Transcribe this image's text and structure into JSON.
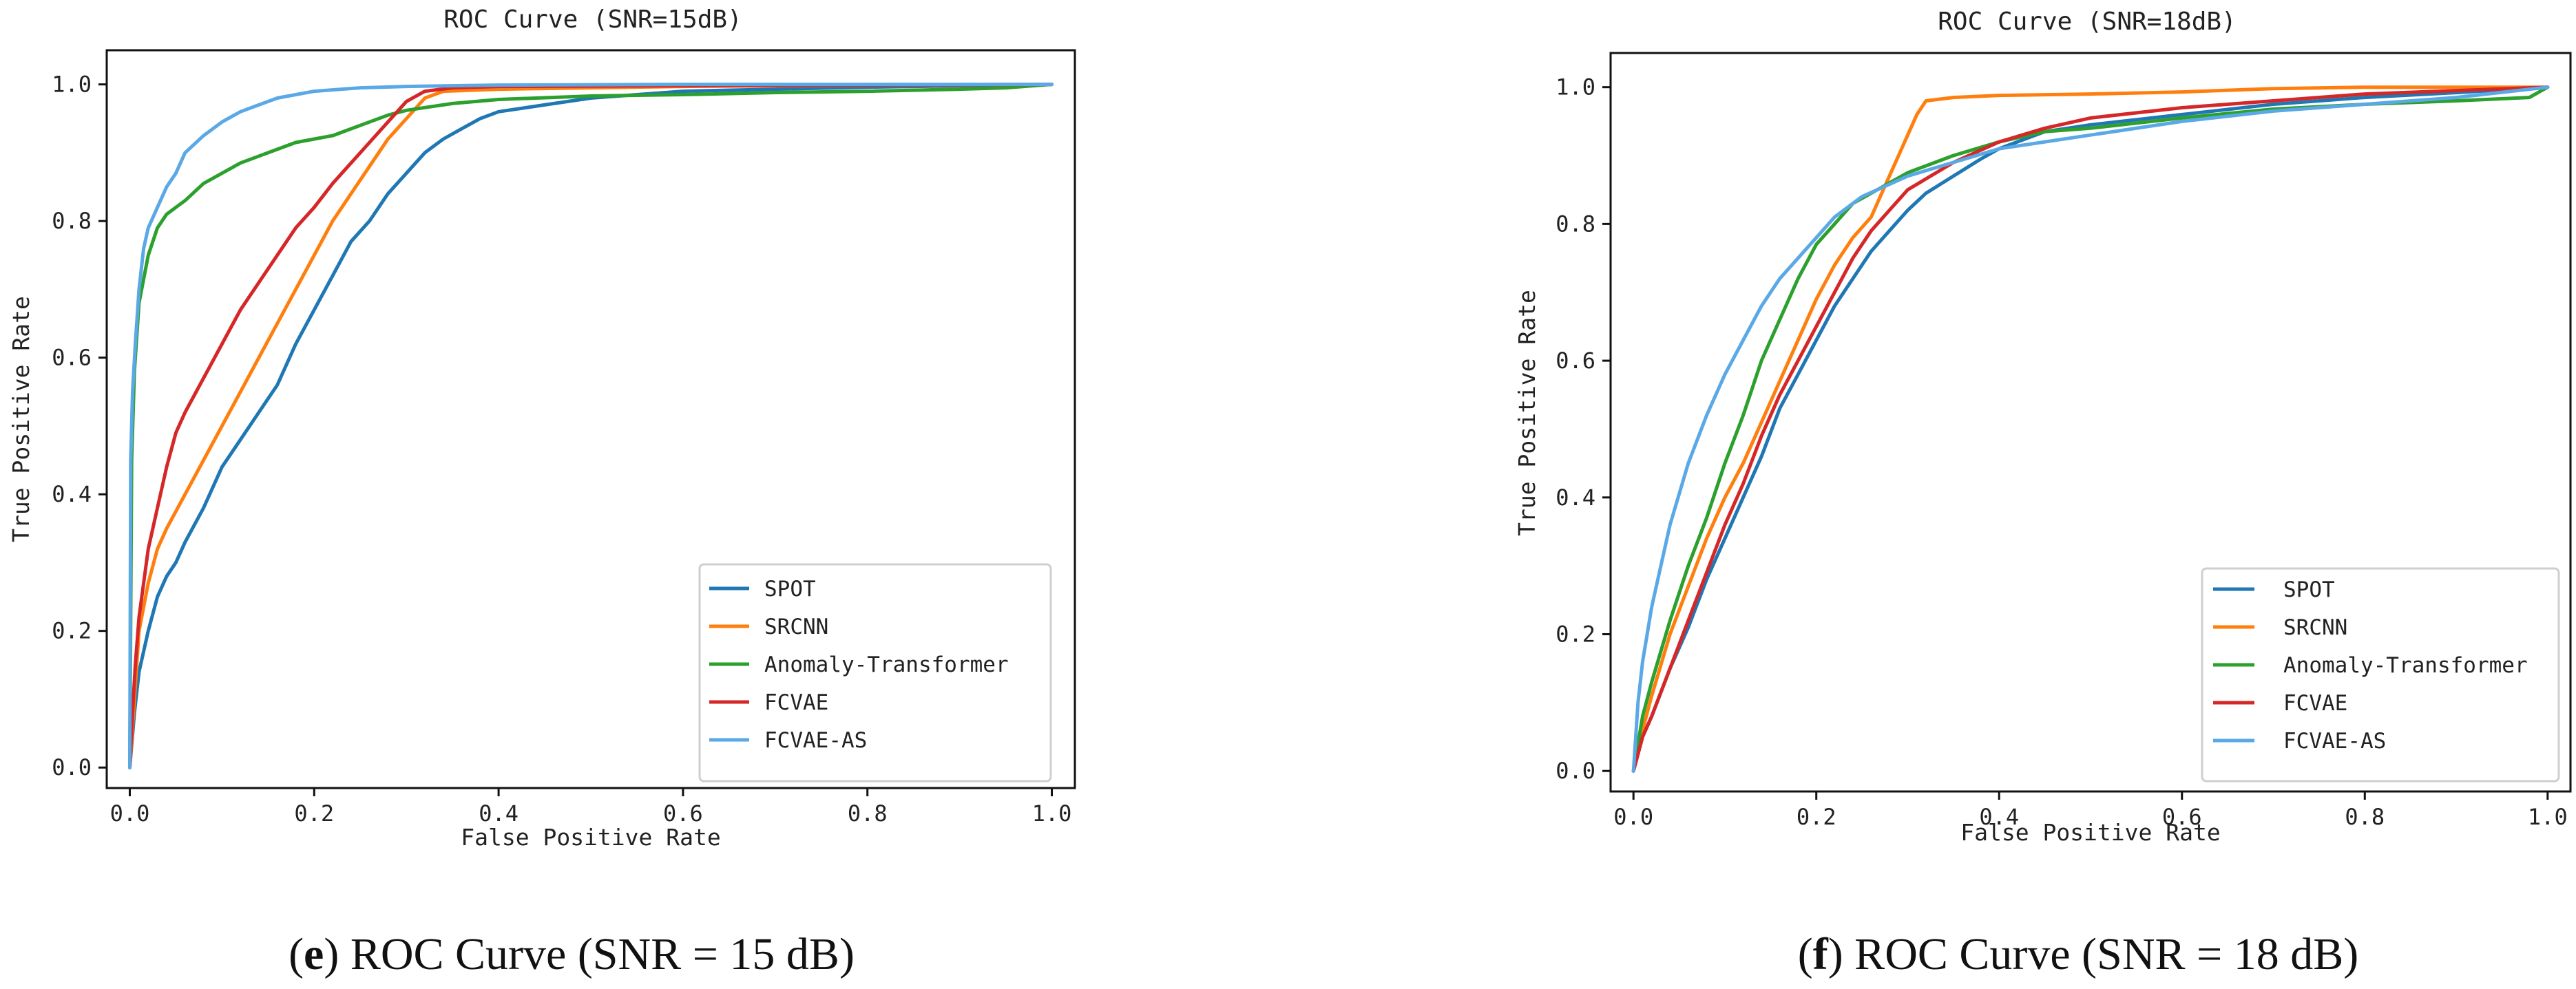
{
  "chart_data": [
    {
      "type": "line",
      "title": "ROC Curve (SNR=15dB)",
      "xlabel": "False Positive Rate",
      "ylabel": "True Positive Rate",
      "xlim": [
        -0.025,
        1.025
      ],
      "ylim": [
        -0.03,
        1.05
      ],
      "xticks": [
        0.0,
        0.2,
        0.4,
        0.6,
        0.8,
        1.0
      ],
      "xtick_labels": [
        "0.0",
        "0.2",
        "0.4",
        "0.6",
        "0.8",
        "1.0"
      ],
      "yticks": [
        0.0,
        0.2,
        0.4,
        0.6,
        0.8,
        1.0
      ],
      "ytick_labels": [
        "0.0",
        "0.2",
        "0.4",
        "0.6",
        "0.8",
        "1.0"
      ],
      "grid": false,
      "legend_position": "lower-right",
      "caption_letter": "e",
      "caption_text": "ROC Curve (SNR = 15 dB)",
      "series": [
        {
          "name": "SPOT",
          "color": "#1f77b4",
          "x": [
            0.0,
            0.005,
            0.01,
            0.02,
            0.03,
            0.04,
            0.05,
            0.06,
            0.08,
            0.1,
            0.12,
            0.14,
            0.16,
            0.18,
            0.2,
            0.22,
            0.24,
            0.26,
            0.28,
            0.3,
            0.32,
            0.34,
            0.36,
            0.38,
            0.4,
            0.45,
            0.5,
            0.55,
            0.6,
            0.7,
            0.8,
            0.9,
            1.0
          ],
          "y": [
            0.0,
            0.08,
            0.14,
            0.2,
            0.25,
            0.28,
            0.3,
            0.33,
            0.38,
            0.44,
            0.48,
            0.52,
            0.56,
            0.62,
            0.67,
            0.72,
            0.77,
            0.8,
            0.84,
            0.87,
            0.9,
            0.92,
            0.935,
            0.95,
            0.96,
            0.97,
            0.98,
            0.985,
            0.99,
            0.993,
            0.996,
            0.998,
            1.0
          ]
        },
        {
          "name": "SRCNN",
          "color": "#ff7f0e",
          "x": [
            0.0,
            0.005,
            0.01,
            0.02,
            0.03,
            0.04,
            0.06,
            0.08,
            0.1,
            0.12,
            0.14,
            0.16,
            0.18,
            0.2,
            0.22,
            0.24,
            0.26,
            0.28,
            0.3,
            0.32,
            0.34,
            0.4,
            0.5,
            0.6,
            0.8,
            1.0
          ],
          "y": [
            0.0,
            0.1,
            0.2,
            0.27,
            0.32,
            0.35,
            0.4,
            0.45,
            0.5,
            0.55,
            0.6,
            0.65,
            0.7,
            0.75,
            0.8,
            0.84,
            0.88,
            0.92,
            0.95,
            0.98,
            0.99,
            0.993,
            0.995,
            0.997,
            0.999,
            1.0
          ]
        },
        {
          "name": "Anomaly-Transformer",
          "color": "#2ca02c",
          "x": [
            0.0,
            0.002,
            0.005,
            0.01,
            0.02,
            0.03,
            0.04,
            0.05,
            0.06,
            0.08,
            0.1,
            0.12,
            0.15,
            0.18,
            0.2,
            0.22,
            0.25,
            0.28,
            0.3,
            0.35,
            0.4,
            0.5,
            0.6,
            0.7,
            0.8,
            0.9,
            0.95,
            1.0
          ],
          "y": [
            0.0,
            0.45,
            0.58,
            0.68,
            0.75,
            0.79,
            0.81,
            0.82,
            0.83,
            0.855,
            0.87,
            0.885,
            0.9,
            0.915,
            0.92,
            0.925,
            0.94,
            0.955,
            0.962,
            0.972,
            0.978,
            0.983,
            0.985,
            0.988,
            0.99,
            0.993,
            0.995,
            1.0
          ]
        },
        {
          "name": "FCVAE",
          "color": "#d62728",
          "x": [
            0.0,
            0.003,
            0.006,
            0.01,
            0.015,
            0.02,
            0.03,
            0.04,
            0.05,
            0.06,
            0.08,
            0.1,
            0.12,
            0.14,
            0.16,
            0.18,
            0.2,
            0.22,
            0.24,
            0.26,
            0.28,
            0.3,
            0.32,
            0.35,
            0.4,
            0.6,
            0.8,
            1.0
          ],
          "y": [
            0.0,
            0.08,
            0.15,
            0.22,
            0.27,
            0.32,
            0.38,
            0.44,
            0.49,
            0.52,
            0.57,
            0.62,
            0.67,
            0.71,
            0.75,
            0.79,
            0.82,
            0.855,
            0.885,
            0.915,
            0.945,
            0.975,
            0.99,
            0.995,
            0.997,
            0.998,
            0.999,
            1.0
          ]
        },
        {
          "name": "FCVAE-AS",
          "color": "#5aa9e6",
          "x": [
            0.0,
            0.001,
            0.003,
            0.006,
            0.01,
            0.015,
            0.02,
            0.03,
            0.04,
            0.05,
            0.06,
            0.08,
            0.1,
            0.12,
            0.14,
            0.16,
            0.18,
            0.2,
            0.25,
            0.3,
            0.4,
            0.6,
            0.8,
            1.0
          ],
          "y": [
            0.0,
            0.45,
            0.55,
            0.62,
            0.7,
            0.76,
            0.79,
            0.82,
            0.85,
            0.87,
            0.9,
            0.925,
            0.945,
            0.96,
            0.97,
            0.98,
            0.985,
            0.99,
            0.995,
            0.997,
            0.999,
            1.0,
            1.0,
            1.0
          ]
        }
      ]
    },
    {
      "type": "line",
      "title": "ROC Curve (SNR=18dB)",
      "xlabel": "False Positive Rate",
      "ylabel": "True Positive Rate",
      "xlim": [
        -0.025,
        1.025
      ],
      "ylim": [
        -0.03,
        1.05
      ],
      "xticks": [
        0.0,
        0.2,
        0.4,
        0.6,
        0.8,
        1.0
      ],
      "xtick_labels": [
        "0.0",
        "0.2",
        "0.4",
        "0.6",
        "0.8",
        "1.0"
      ],
      "yticks": [
        0.0,
        0.2,
        0.4,
        0.6,
        0.8,
        1.0
      ],
      "ytick_labels": [
        "0.0",
        "0.2",
        "0.4",
        "0.6",
        "0.8",
        "1.0"
      ],
      "grid": false,
      "legend_position": "lower-right",
      "caption_letter": "f",
      "caption_text": "ROC Curve (SNR = 18 dB)",
      "series": [
        {
          "name": "SPOT",
          "color": "#1f77b4",
          "x": [
            0.0,
            0.01,
            0.02,
            0.04,
            0.06,
            0.08,
            0.1,
            0.12,
            0.14,
            0.16,
            0.18,
            0.2,
            0.22,
            0.24,
            0.26,
            0.28,
            0.3,
            0.32,
            0.35,
            0.38,
            0.4,
            0.45,
            0.5,
            0.6,
            0.7,
            0.8,
            0.9,
            1.0
          ],
          "y": [
            0.0,
            0.05,
            0.08,
            0.15,
            0.21,
            0.28,
            0.34,
            0.4,
            0.46,
            0.53,
            0.58,
            0.63,
            0.68,
            0.72,
            0.76,
            0.79,
            0.82,
            0.845,
            0.87,
            0.895,
            0.91,
            0.935,
            0.945,
            0.96,
            0.975,
            0.985,
            0.992,
            1.0
          ]
        },
        {
          "name": "SRCNN",
          "color": "#ff7f0e",
          "x": [
            0.0,
            0.01,
            0.02,
            0.04,
            0.06,
            0.08,
            0.1,
            0.12,
            0.14,
            0.16,
            0.18,
            0.2,
            0.22,
            0.24,
            0.26,
            0.27,
            0.28,
            0.29,
            0.3,
            0.31,
            0.32,
            0.35,
            0.4,
            0.5,
            0.6,
            0.7,
            0.8,
            1.0
          ],
          "y": [
            0.0,
            0.06,
            0.11,
            0.2,
            0.27,
            0.34,
            0.4,
            0.45,
            0.51,
            0.57,
            0.63,
            0.69,
            0.74,
            0.78,
            0.81,
            0.84,
            0.87,
            0.9,
            0.93,
            0.96,
            0.98,
            0.985,
            0.988,
            0.99,
            0.993,
            0.998,
            1.0,
            1.0
          ]
        },
        {
          "name": "Anomaly-Transformer",
          "color": "#2ca02c",
          "x": [
            0.0,
            0.01,
            0.02,
            0.04,
            0.06,
            0.08,
            0.1,
            0.12,
            0.14,
            0.16,
            0.18,
            0.2,
            0.22,
            0.24,
            0.26,
            0.28,
            0.3,
            0.35,
            0.4,
            0.45,
            0.5,
            0.6,
            0.7,
            0.8,
            0.9,
            0.98,
            1.0
          ],
          "y": [
            0.0,
            0.08,
            0.13,
            0.22,
            0.3,
            0.37,
            0.45,
            0.52,
            0.6,
            0.66,
            0.72,
            0.77,
            0.8,
            0.83,
            0.845,
            0.86,
            0.875,
            0.9,
            0.92,
            0.935,
            0.94,
            0.955,
            0.968,
            0.975,
            0.98,
            0.985,
            1.0
          ]
        },
        {
          "name": "FCVAE",
          "color": "#d62728",
          "x": [
            0.0,
            0.01,
            0.02,
            0.04,
            0.06,
            0.08,
            0.1,
            0.12,
            0.14,
            0.16,
            0.18,
            0.2,
            0.22,
            0.24,
            0.26,
            0.28,
            0.3,
            0.35,
            0.4,
            0.45,
            0.5,
            0.6,
            0.7,
            0.8,
            0.9,
            1.0
          ],
          "y": [
            0.0,
            0.05,
            0.08,
            0.15,
            0.22,
            0.29,
            0.36,
            0.42,
            0.49,
            0.55,
            0.6,
            0.65,
            0.7,
            0.75,
            0.79,
            0.82,
            0.85,
            0.89,
            0.92,
            0.94,
            0.955,
            0.97,
            0.98,
            0.99,
            0.995,
            1.0
          ]
        },
        {
          "name": "FCVAE-AS",
          "color": "#5aa9e6",
          "x": [
            0.0,
            0.005,
            0.01,
            0.02,
            0.03,
            0.04,
            0.06,
            0.08,
            0.1,
            0.12,
            0.14,
            0.16,
            0.18,
            0.2,
            0.22,
            0.25,
            0.3,
            0.35,
            0.4,
            0.5,
            0.6,
            0.7,
            0.8,
            0.9,
            1.0
          ],
          "y": [
            0.0,
            0.1,
            0.16,
            0.24,
            0.3,
            0.36,
            0.45,
            0.52,
            0.58,
            0.63,
            0.68,
            0.72,
            0.75,
            0.78,
            0.81,
            0.84,
            0.87,
            0.89,
            0.91,
            0.93,
            0.95,
            0.965,
            0.975,
            0.985,
            1.0
          ]
        }
      ]
    }
  ]
}
